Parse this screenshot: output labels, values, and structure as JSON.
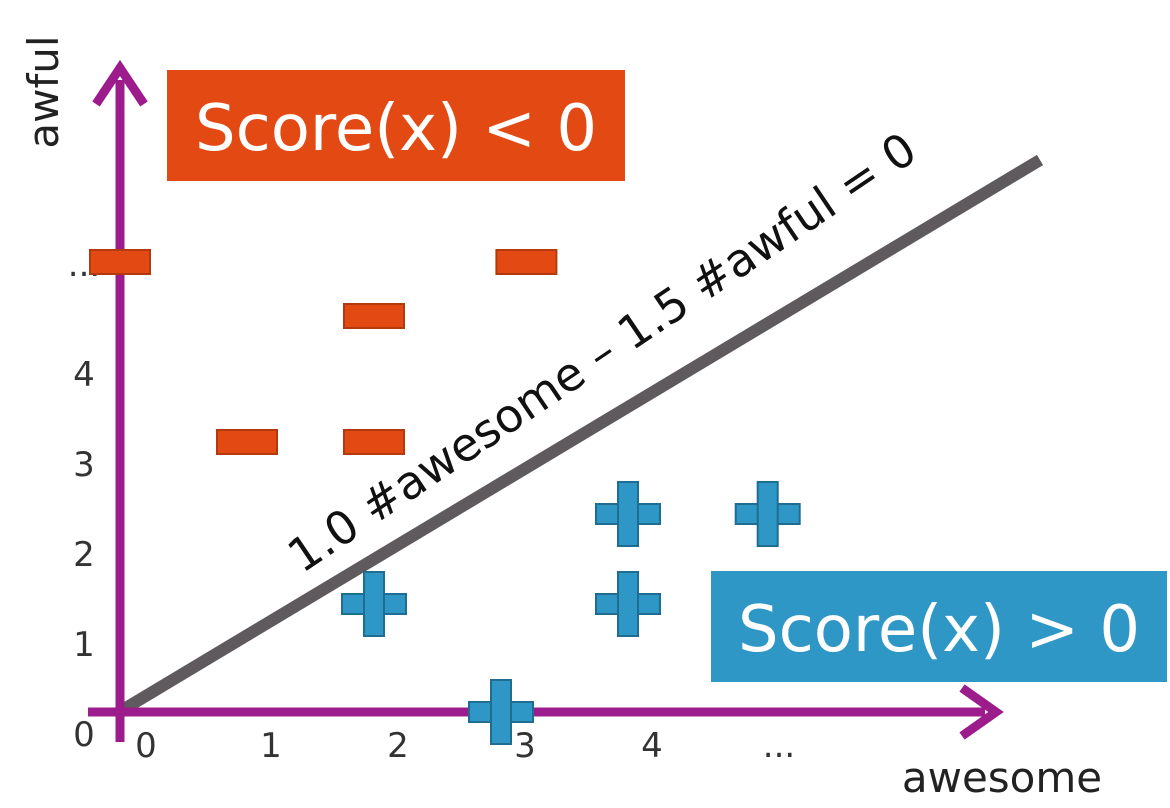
{
  "chart_data": {
    "type": "scatter",
    "title": "",
    "xlabel": "awesome",
    "ylabel": "awful",
    "xlim": [
      0,
      5
    ],
    "ylim": [
      0,
      5
    ],
    "x_ticks": [
      "0",
      "1",
      "2",
      "3",
      "4",
      "..."
    ],
    "y_ticks": [
      "0",
      "1",
      "2",
      "3",
      "4",
      "..."
    ],
    "decision_boundary": {
      "equation": "1.0 #awesome – 1.5 #awful = 0",
      "w_awesome": 1.0,
      "w_awful": -1.5
    },
    "regions": {
      "negative": "Score(x) < 0",
      "positive": "Score(x) > 0"
    },
    "series": [
      {
        "class": "negative",
        "marker": "minus",
        "points": [
          [
            0,
            5
          ],
          [
            1,
            3
          ],
          [
            2,
            3
          ],
          [
            2,
            4.4
          ],
          [
            3.2,
            5
          ]
        ]
      },
      {
        "class": "positive",
        "marker": "plus",
        "points": [
          [
            2,
            1.2
          ],
          [
            3,
            0
          ],
          [
            4,
            1.2
          ],
          [
            4,
            2.2
          ],
          [
            5.1,
            2.2
          ]
        ]
      }
    ],
    "colors": {
      "axis": "#9c1c8c",
      "negative": "#e34a13",
      "positive": "#2f97c6",
      "boundary": "#5e5a5e"
    }
  }
}
